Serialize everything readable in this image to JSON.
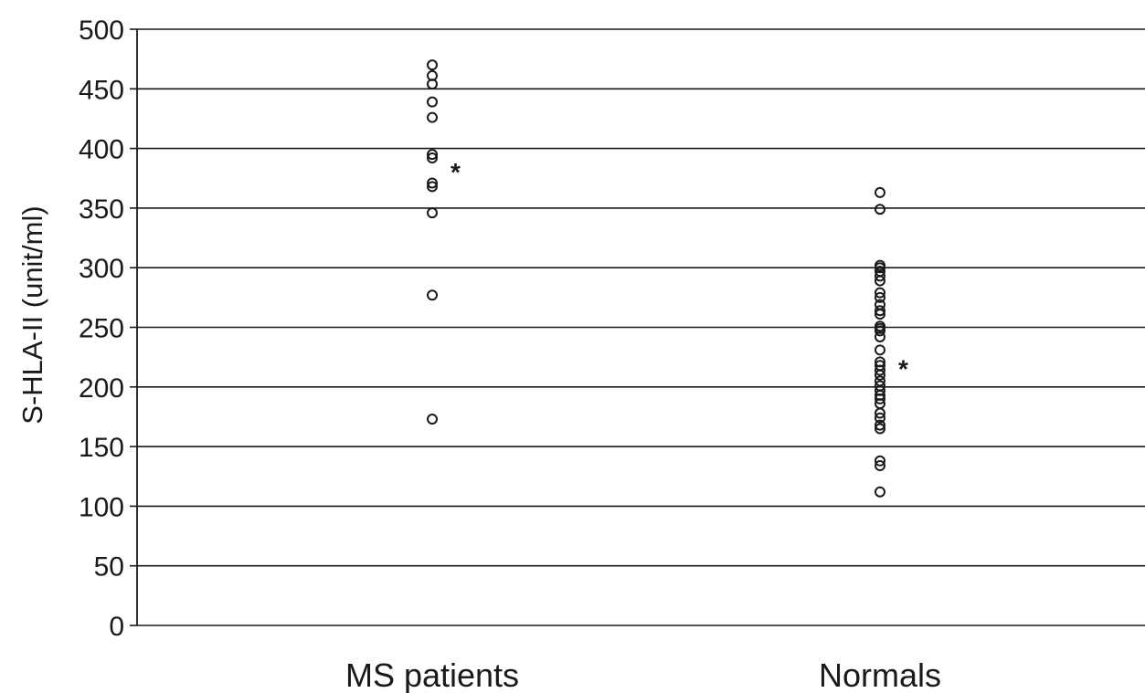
{
  "chart_data": {
    "type": "scatter",
    "title": "",
    "xlabel": "",
    "ylabel": "S-HLA-II (unit/ml)",
    "categories": [
      "MS patients",
      "Normals"
    ],
    "ylim": [
      0,
      500
    ],
    "yticks": [
      0,
      50,
      100,
      150,
      200,
      250,
      300,
      350,
      400,
      450,
      500
    ],
    "grid": true,
    "marker": "open-circle",
    "significance_marker": "*",
    "series": [
      {
        "category": "MS patients",
        "values": [
          470,
          461,
          454,
          439,
          426,
          395,
          392,
          371,
          368,
          346,
          277,
          173
        ],
        "annotation": "*",
        "annotation_y": 382
      },
      {
        "category": "Normals",
        "values": [
          363,
          349,
          302,
          300,
          297,
          293,
          289,
          279,
          275,
          269,
          264,
          261,
          251,
          249,
          247,
          242,
          231,
          221,
          218,
          214,
          210,
          205,
          201,
          197,
          193,
          190,
          186,
          178,
          174,
          168,
          165,
          138,
          134,
          112
        ],
        "annotation": "*",
        "annotation_y": 217
      }
    ]
  },
  "colors": {
    "axis": "#1a1a1a",
    "grid": "#1a1a1a",
    "marker": "#1a1a1a",
    "background": "#ffffff"
  }
}
